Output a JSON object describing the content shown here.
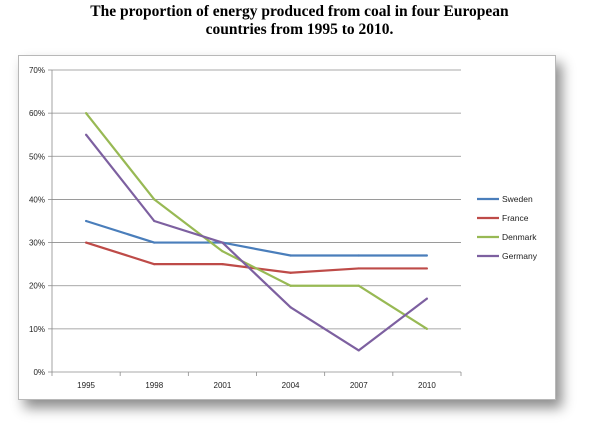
{
  "title_line1": "The proportion of energy produced from coal in four European",
  "title_line2": "countries from 1995 to 2010.",
  "chart_data": {
    "type": "line",
    "title": "The proportion of energy produced from coal in four European countries from 1995 to 2010.",
    "categories": [
      "1995",
      "1998",
      "2001",
      "2004",
      "2007",
      "2010"
    ],
    "ylim": [
      0,
      70
    ],
    "yticks": [
      "0%",
      "10%",
      "20%",
      "30%",
      "40%",
      "50%",
      "60%",
      "70%"
    ],
    "grid": true,
    "legend": "right",
    "series": [
      {
        "name": "Sweden",
        "color": "#4a7ebb",
        "values": [
          35,
          30,
          30,
          27,
          27,
          27
        ]
      },
      {
        "name": "France",
        "color": "#be4b48",
        "values": [
          30,
          25,
          25,
          23,
          24,
          24
        ]
      },
      {
        "name": "Denmark",
        "color": "#98b954",
        "values": [
          60,
          40,
          28,
          20,
          20,
          10
        ]
      },
      {
        "name": "Germany",
        "color": "#7d60a0",
        "values": [
          55,
          35,
          30,
          15,
          5,
          17
        ]
      }
    ]
  }
}
